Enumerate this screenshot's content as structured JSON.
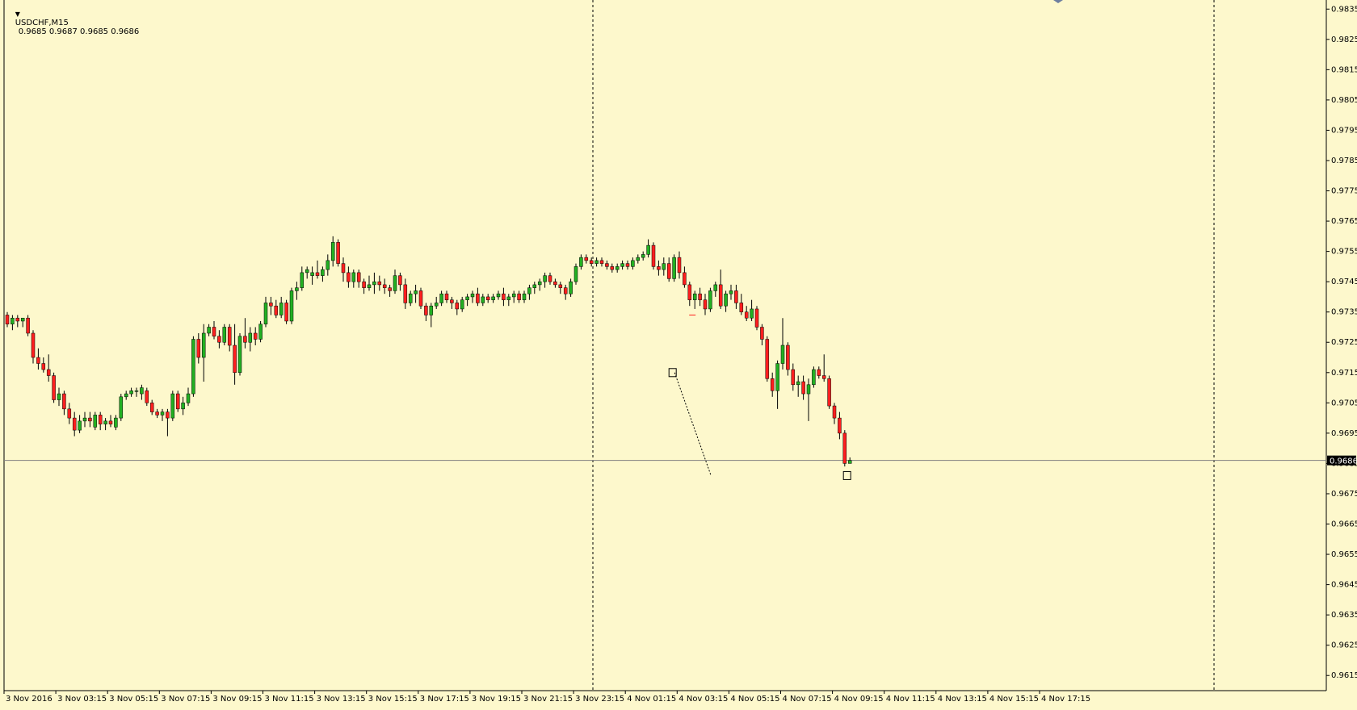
{
  "window": {
    "symbol": "USDCHF,M15",
    "ohlc": "0.9685 0.9687 0.9685 0.9686"
  },
  "colors": {
    "background": "#fdf8cc",
    "bull": "#22b022",
    "bear": "#ff1f1f",
    "axis": "#000000",
    "grid_line": "#808080"
  },
  "icons": {
    "dropdown": "triangle-down-icon",
    "trade_marker": "trade-entry-icon",
    "arrow_marker": "arrow-exit-icon"
  },
  "chart_data": {
    "type": "candlestick",
    "ylim": [
      0.961,
      0.9838
    ],
    "price_ticks": [
      "0.9835",
      "0.9825",
      "0.9815",
      "0.9805",
      "0.9795",
      "0.9785",
      "0.9775",
      "0.9765",
      "0.9755",
      "0.9745",
      "0.9735",
      "0.9725",
      "0.9715",
      "0.9705",
      "0.9695",
      "0.9685",
      "0.9675",
      "0.9665",
      "0.9655",
      "0.9645",
      "0.9635",
      "0.9625",
      "0.9615"
    ],
    "current_price": "0.9686",
    "time_ticks": [
      "3 Nov 2016",
      "3 Nov 03:15",
      "3 Nov 05:15",
      "3 Nov 07:15",
      "3 Nov 09:15",
      "3 Nov 11:15",
      "3 Nov 13:15",
      "3 Nov 15:15",
      "3 Nov 17:15",
      "3 Nov 19:15",
      "3 Nov 21:15",
      "3 Nov 23:15",
      "4 Nov 01:15",
      "4 Nov 03:15",
      "4 Nov 05:15",
      "4 Nov 07:15",
      "4 Nov 09:15",
      "4 Nov 11:15",
      "4 Nov 13:15",
      "4 Nov 15:15",
      "4 Nov 17:15"
    ],
    "period_separators": [
      "3 Nov 23:15",
      "5 Nov 00:00"
    ],
    "pending_marker_price": 0.9734,
    "candles": [
      [
        0.9734,
        0.9735,
        0.973,
        0.9731
      ],
      [
        0.9731,
        0.9734,
        0.9729,
        0.9733
      ],
      [
        0.9733,
        0.9734,
        0.973,
        0.9732
      ],
      [
        0.9732,
        0.9733,
        0.973,
        0.9733
      ],
      [
        0.9733,
        0.9734,
        0.9727,
        0.9728
      ],
      [
        0.9728,
        0.9729,
        0.9718,
        0.972
      ],
      [
        0.972,
        0.9723,
        0.9716,
        0.9718
      ],
      [
        0.9718,
        0.972,
        0.9715,
        0.9716
      ],
      [
        0.9716,
        0.9721,
        0.9712,
        0.9714
      ],
      [
        0.9714,
        0.9715,
        0.9705,
        0.9706
      ],
      [
        0.9706,
        0.971,
        0.9704,
        0.9708
      ],
      [
        0.9708,
        0.9709,
        0.9701,
        0.9703
      ],
      [
        0.9703,
        0.9705,
        0.9698,
        0.97
      ],
      [
        0.97,
        0.9702,
        0.9694,
        0.9696
      ],
      [
        0.9696,
        0.9701,
        0.9695,
        0.9699
      ],
      [
        0.9699,
        0.9702,
        0.9697,
        0.97
      ],
      [
        0.97,
        0.9702,
        0.9697,
        0.9699
      ],
      [
        0.9697,
        0.9702,
        0.9696,
        0.9701
      ],
      [
        0.9701,
        0.9702,
        0.9696,
        0.9698
      ],
      [
        0.9698,
        0.97,
        0.9696,
        0.9699
      ],
      [
        0.9699,
        0.9701,
        0.9697,
        0.9698
      ],
      [
        0.9697,
        0.9701,
        0.9696,
        0.97
      ],
      [
        0.97,
        0.9708,
        0.9699,
        0.9707
      ],
      [
        0.9707,
        0.9709,
        0.9706,
        0.9708
      ],
      [
        0.9708,
        0.971,
        0.9707,
        0.9709
      ],
      [
        0.9709,
        0.971,
        0.9707,
        0.9709
      ],
      [
        0.9708,
        0.9711,
        0.9706,
        0.971
      ],
      [
        0.9709,
        0.971,
        0.9704,
        0.9705
      ],
      [
        0.9705,
        0.9706,
        0.9701,
        0.9702
      ],
      [
        0.9702,
        0.9703,
        0.97,
        0.9701
      ],
      [
        0.9701,
        0.9703,
        0.9699,
        0.9702
      ],
      [
        0.9702,
        0.9703,
        0.9694,
        0.97
      ],
      [
        0.97,
        0.9709,
        0.9699,
        0.9708
      ],
      [
        0.9708,
        0.9709,
        0.9702,
        0.9703
      ],
      [
        0.9703,
        0.9707,
        0.9701,
        0.9705
      ],
      [
        0.9705,
        0.971,
        0.9704,
        0.9708
      ],
      [
        0.9708,
        0.9727,
        0.9707,
        0.9726
      ],
      [
        0.9726,
        0.9728,
        0.9718,
        0.972
      ],
      [
        0.972,
        0.9731,
        0.9712,
        0.9728
      ],
      [
        0.9728,
        0.9731,
        0.9727,
        0.973
      ],
      [
        0.973,
        0.9732,
        0.9726,
        0.9727
      ],
      [
        0.9727,
        0.9729,
        0.9723,
        0.9725
      ],
      [
        0.9725,
        0.9731,
        0.9724,
        0.973
      ],
      [
        0.973,
        0.9731,
        0.9722,
        0.9724
      ],
      [
        0.9724,
        0.9731,
        0.9711,
        0.9715
      ],
      [
        0.9715,
        0.9728,
        0.9714,
        0.9727
      ],
      [
        0.9727,
        0.9733,
        0.9723,
        0.9725
      ],
      [
        0.9725,
        0.973,
        0.9722,
        0.9728
      ],
      [
        0.9728,
        0.973,
        0.9724,
        0.9726
      ],
      [
        0.9726,
        0.9732,
        0.9725,
        0.9731
      ],
      [
        0.9731,
        0.974,
        0.973,
        0.9738
      ],
      [
        0.9738,
        0.974,
        0.9734,
        0.9737
      ],
      [
        0.9737,
        0.9739,
        0.9733,
        0.9734
      ],
      [
        0.9734,
        0.974,
        0.9733,
        0.9738
      ],
      [
        0.9738,
        0.9739,
        0.9731,
        0.9732
      ],
      [
        0.9732,
        0.9743,
        0.9731,
        0.9742
      ],
      [
        0.9742,
        0.9745,
        0.9739,
        0.9743
      ],
      [
        0.9743,
        0.975,
        0.9742,
        0.9748
      ],
      [
        0.9748,
        0.975,
        0.9746,
        0.9749
      ],
      [
        0.9747,
        0.975,
        0.9744,
        0.9748
      ],
      [
        0.9748,
        0.9752,
        0.9746,
        0.9747
      ],
      [
        0.9747,
        0.975,
        0.9745,
        0.9749
      ],
      [
        0.9749,
        0.9754,
        0.9747,
        0.9752
      ],
      [
        0.9752,
        0.976,
        0.975,
        0.9758
      ],
      [
        0.9758,
        0.9759,
        0.975,
        0.9751
      ],
      [
        0.9751,
        0.9753,
        0.9745,
        0.9748
      ],
      [
        0.9748,
        0.975,
        0.9743,
        0.9745
      ],
      [
        0.9745,
        0.9749,
        0.9743,
        0.9748
      ],
      [
        0.9748,
        0.9749,
        0.9743,
        0.9745
      ],
      [
        0.9745,
        0.9746,
        0.9741,
        0.9743
      ],
      [
        0.9743,
        0.9747,
        0.9742,
        0.9744
      ],
      [
        0.9744,
        0.9748,
        0.9741,
        0.9745
      ],
      [
        0.9745,
        0.9747,
        0.9742,
        0.9744
      ],
      [
        0.9744,
        0.9746,
        0.9741,
        0.9743
      ],
      [
        0.9743,
        0.9744,
        0.974,
        0.9742
      ],
      [
        0.9742,
        0.9749,
        0.9741,
        0.9747
      ],
      [
        0.9747,
        0.9748,
        0.9742,
        0.9744
      ],
      [
        0.9744,
        0.9746,
        0.9736,
        0.9738
      ],
      [
        0.9738,
        0.9742,
        0.9737,
        0.9741
      ],
      [
        0.9741,
        0.9744,
        0.9738,
        0.9742
      ],
      [
        0.9742,
        0.9743,
        0.9736,
        0.9737
      ],
      [
        0.9737,
        0.9738,
        0.9732,
        0.9734
      ],
      [
        0.9734,
        0.9738,
        0.973,
        0.9737
      ],
      [
        0.9737,
        0.974,
        0.9736,
        0.9738
      ],
      [
        0.9738,
        0.9742,
        0.9737,
        0.9741
      ],
      [
        0.9741,
        0.9742,
        0.9738,
        0.9739
      ],
      [
        0.9739,
        0.974,
        0.9736,
        0.9738
      ],
      [
        0.9738,
        0.9739,
        0.9734,
        0.9736
      ],
      [
        0.9736,
        0.974,
        0.9735,
        0.9739
      ],
      [
        0.9739,
        0.9741,
        0.9737,
        0.974
      ],
      [
        0.974,
        0.9742,
        0.9738,
        0.9741
      ],
      [
        0.9741,
        0.9743,
        0.9737,
        0.9738
      ],
      [
        0.9738,
        0.9741,
        0.9737,
        0.974
      ],
      [
        0.974,
        0.9741,
        0.9738,
        0.9739
      ],
      [
        0.9739,
        0.9741,
        0.9738,
        0.974
      ],
      [
        0.974,
        0.9742,
        0.9739,
        0.9741
      ],
      [
        0.9741,
        0.9743,
        0.9737,
        0.9739
      ],
      [
        0.9739,
        0.9741,
        0.9737,
        0.974
      ],
      [
        0.974,
        0.9742,
        0.9738,
        0.9741
      ],
      [
        0.9741,
        0.9742,
        0.9738,
        0.9739
      ],
      [
        0.9739,
        0.9742,
        0.9738,
        0.9741
      ],
      [
        0.9741,
        0.9744,
        0.9739,
        0.9743
      ],
      [
        0.9743,
        0.9745,
        0.9741,
        0.9744
      ],
      [
        0.9744,
        0.9746,
        0.9742,
        0.9745
      ],
      [
        0.9745,
        0.9748,
        0.9743,
        0.9747
      ],
      [
        0.9747,
        0.9748,
        0.9744,
        0.9745
      ],
      [
        0.9745,
        0.9746,
        0.9743,
        0.9744
      ],
      [
        0.9744,
        0.9745,
        0.9741,
        0.9743
      ],
      [
        0.9743,
        0.9744,
        0.9739,
        0.9741
      ],
      [
        0.9741,
        0.9746,
        0.974,
        0.9745
      ],
      [
        0.9745,
        0.9751,
        0.9744,
        0.975
      ],
      [
        0.975,
        0.9754,
        0.9749,
        0.9753
      ],
      [
        0.9753,
        0.9754,
        0.9751,
        0.9752
      ],
      [
        0.9752,
        0.9753,
        0.975,
        0.9751
      ],
      [
        0.9751,
        0.9753,
        0.975,
        0.9752
      ],
      [
        0.9752,
        0.9753,
        0.975,
        0.9751
      ],
      [
        0.9751,
        0.9752,
        0.9749,
        0.975
      ],
      [
        0.975,
        0.9751,
        0.9748,
        0.9749
      ],
      [
        0.9749,
        0.9751,
        0.9748,
        0.975
      ],
      [
        0.975,
        0.9752,
        0.9749,
        0.9751
      ],
      [
        0.9751,
        0.9752,
        0.9749,
        0.975
      ],
      [
        0.975,
        0.9753,
        0.9749,
        0.9752
      ],
      [
        0.9752,
        0.9754,
        0.9751,
        0.9753
      ],
      [
        0.9753,
        0.9755,
        0.9752,
        0.9754
      ],
      [
        0.9754,
        0.9759,
        0.9753,
        0.9757
      ],
      [
        0.9757,
        0.9758,
        0.9749,
        0.975
      ],
      [
        0.975,
        0.9752,
        0.9747,
        0.9749
      ],
      [
        0.9749,
        0.9753,
        0.9747,
        0.9751
      ],
      [
        0.9751,
        0.9753,
        0.9745,
        0.9746
      ],
      [
        0.9746,
        0.9754,
        0.9745,
        0.9753
      ],
      [
        0.9753,
        0.9755,
        0.9746,
        0.9748
      ],
      [
        0.9748,
        0.975,
        0.9743,
        0.9744
      ],
      [
        0.9744,
        0.9745,
        0.9737,
        0.9739
      ],
      [
        0.9739,
        0.9742,
        0.9736,
        0.9741
      ],
      [
        0.9741,
        0.9743,
        0.9737,
        0.9739
      ],
      [
        0.9739,
        0.9741,
        0.9734,
        0.9736
      ],
      [
        0.9736,
        0.9743,
        0.9735,
        0.9742
      ],
      [
        0.9742,
        0.9745,
        0.974,
        0.9744
      ],
      [
        0.9744,
        0.9749,
        0.9736,
        0.9737
      ],
      [
        0.9737,
        0.9742,
        0.9735,
        0.9741
      ],
      [
        0.9741,
        0.9744,
        0.9739,
        0.9742
      ],
      [
        0.9742,
        0.9744,
        0.9736,
        0.9738
      ],
      [
        0.9738,
        0.9741,
        0.9734,
        0.9735
      ],
      [
        0.9735,
        0.9737,
        0.9732,
        0.9733
      ],
      [
        0.9733,
        0.9739,
        0.9732,
        0.9736
      ],
      [
        0.9736,
        0.9737,
        0.9729,
        0.973
      ],
      [
        0.973,
        0.9731,
        0.9724,
        0.9726
      ],
      [
        0.9726,
        0.9727,
        0.9712,
        0.9713
      ],
      [
        0.9713,
        0.9715,
        0.9707,
        0.9709
      ],
      [
        0.9709,
        0.9719,
        0.9703,
        0.9718
      ],
      [
        0.9718,
        0.9733,
        0.9716,
        0.9724
      ],
      [
        0.9724,
        0.9725,
        0.9714,
        0.9716
      ],
      [
        0.9716,
        0.9718,
        0.9709,
        0.9711
      ],
      [
        0.9711,
        0.9714,
        0.9707,
        0.9712
      ],
      [
        0.9712,
        0.9714,
        0.9706,
        0.9708
      ],
      [
        0.9708,
        0.9713,
        0.9699,
        0.9711
      ],
      [
        0.9711,
        0.9717,
        0.971,
        0.9716
      ],
      [
        0.9716,
        0.9717,
        0.9713,
        0.9714
      ],
      [
        0.9714,
        0.9721,
        0.9712,
        0.9713
      ],
      [
        0.9713,
        0.9714,
        0.9703,
        0.9704
      ],
      [
        0.9704,
        0.9705,
        0.9698,
        0.97
      ],
      [
        0.97,
        0.9702,
        0.9693,
        0.9695
      ],
      [
        0.9695,
        0.9696,
        0.9684,
        0.9685
      ],
      [
        0.9685,
        0.9687,
        0.9685,
        0.9686
      ]
    ]
  }
}
